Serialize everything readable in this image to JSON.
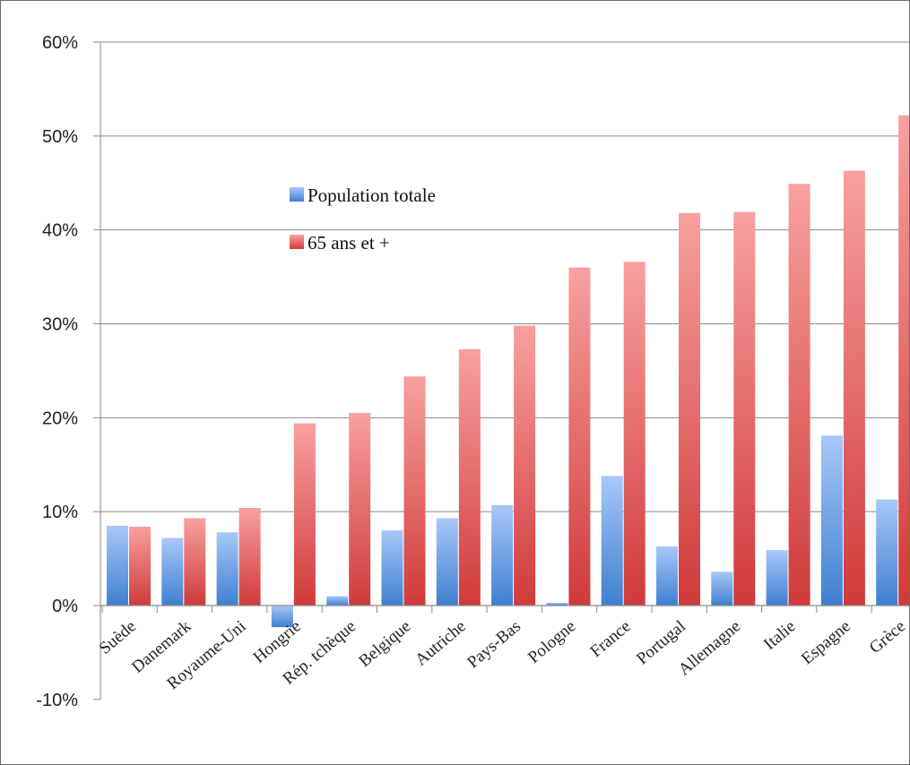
{
  "chart_data": {
    "type": "bar",
    "categories": [
      "Suède",
      "Danemark",
      "Royaume-Uni",
      "Hongrie",
      "Rép. tchèque",
      "Belgique",
      "Autriche",
      "Pays-Bas",
      "Pologne",
      "France",
      "Portugal",
      "Allemagne",
      "Italie",
      "Espagne",
      "Grèce"
    ],
    "series": [
      {
        "name": "Population totale",
        "color_top": "#a8c8f8",
        "color_bottom": "#3f7fd0",
        "values": [
          8.5,
          7.2,
          7.8,
          -2.3,
          1.0,
          8.0,
          9.3,
          10.7,
          0.3,
          13.8,
          6.3,
          3.6,
          5.9,
          18.1,
          11.3
        ]
      },
      {
        "name": "65 ans et +",
        "color_top": "#f8a0a0",
        "color_bottom": "#d03a3a",
        "values": [
          8.4,
          9.3,
          10.4,
          19.4,
          20.5,
          24.4,
          27.3,
          29.8,
          36.0,
          36.6,
          41.8,
          41.9,
          44.9,
          46.3,
          52.2
        ]
      }
    ],
    "y_ticks": [
      "-10%",
      "0%",
      "10%",
      "20%",
      "30%",
      "40%",
      "50%",
      "60%"
    ],
    "ylim": [
      -10,
      60
    ],
    "grid": true,
    "legend_position": "inside-upper-center",
    "title": "",
    "xlabel": "",
    "ylabel": ""
  }
}
